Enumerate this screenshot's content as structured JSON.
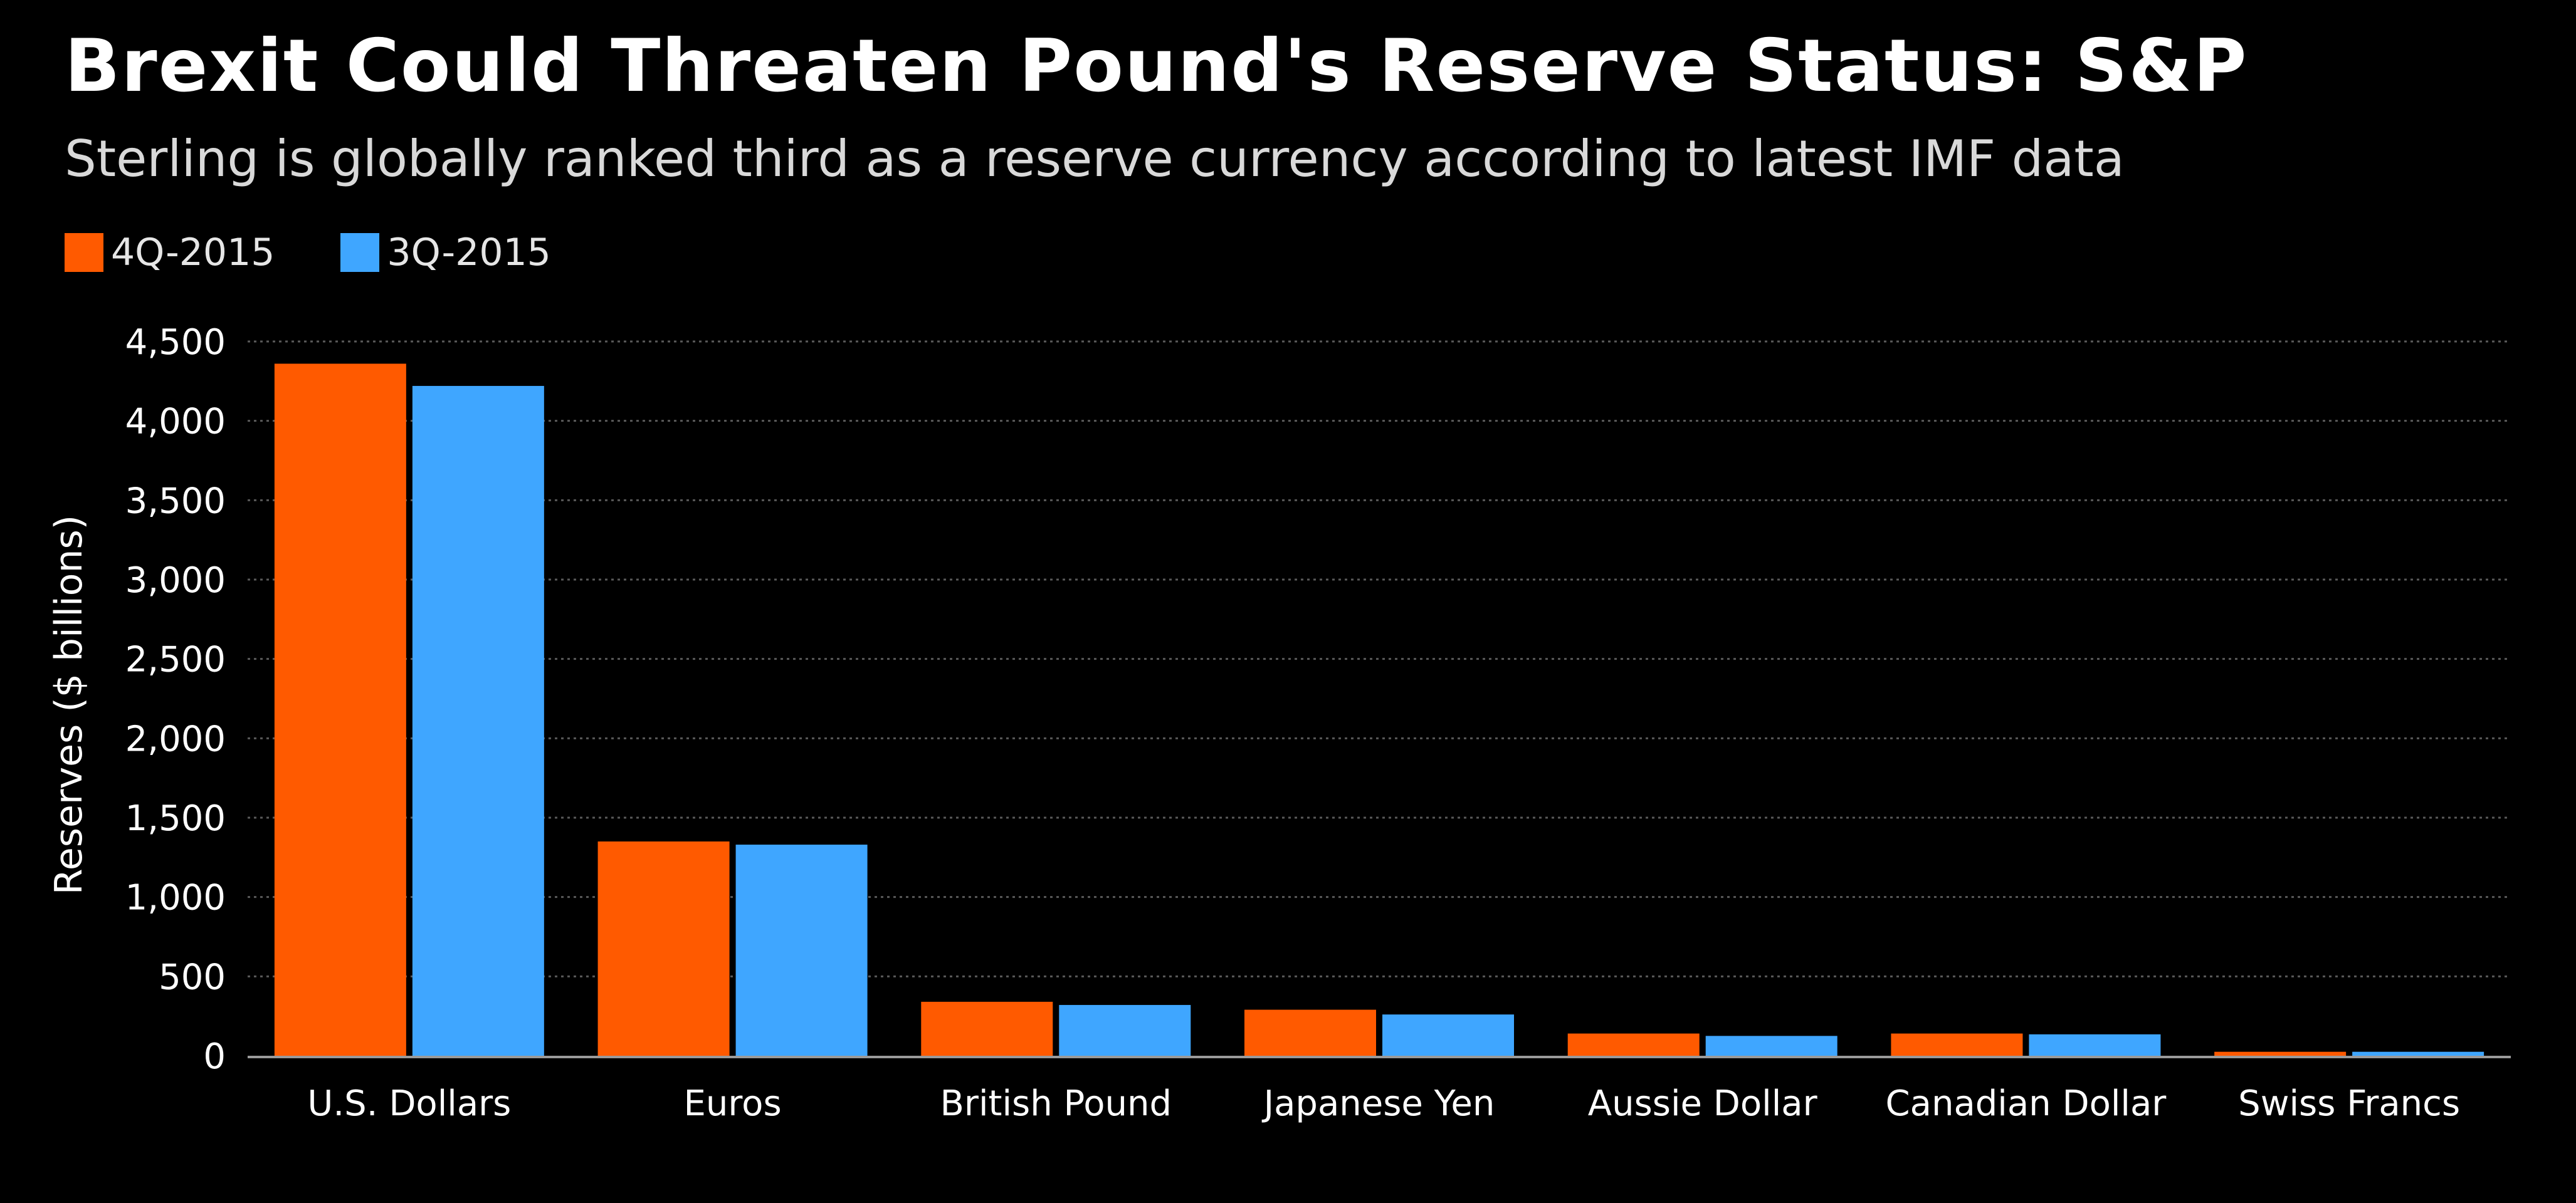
{
  "chart_data": {
    "type": "bar",
    "title": "Brexit Could Threaten Pound's Reserve Status: S&P",
    "subtitle": "Sterling is globally ranked third as a reserve currency according to latest IMF data",
    "ylabel": "Reserves ($ billions)",
    "xlabel": "",
    "ylim": [
      0,
      4500
    ],
    "yticks": [
      0,
      500,
      1000,
      1500,
      2000,
      2500,
      3000,
      3500,
      4000,
      4500
    ],
    "ytick_labels": [
      "0",
      "500",
      "1,000",
      "1,500",
      "2,000",
      "2,500",
      "3,000",
      "3,500",
      "4,000",
      "4,500"
    ],
    "grid": true,
    "legend_position": "top-left",
    "categories": [
      "U.S. Dollars",
      "Euros",
      "British Pound",
      "Japanese Yen",
      "Aussie Dollar",
      "Canadian Dollar",
      "Swiss Francs"
    ],
    "series": [
      {
        "name": "4Q-2015",
        "color": "#ff5a00",
        "values": [
          4360,
          1350,
          340,
          290,
          140,
          140,
          25
        ]
      },
      {
        "name": "3Q-2015",
        "color": "#3fa6ff",
        "values": [
          4220,
          1330,
          320,
          260,
          125,
          135,
          25
        ]
      }
    ]
  }
}
